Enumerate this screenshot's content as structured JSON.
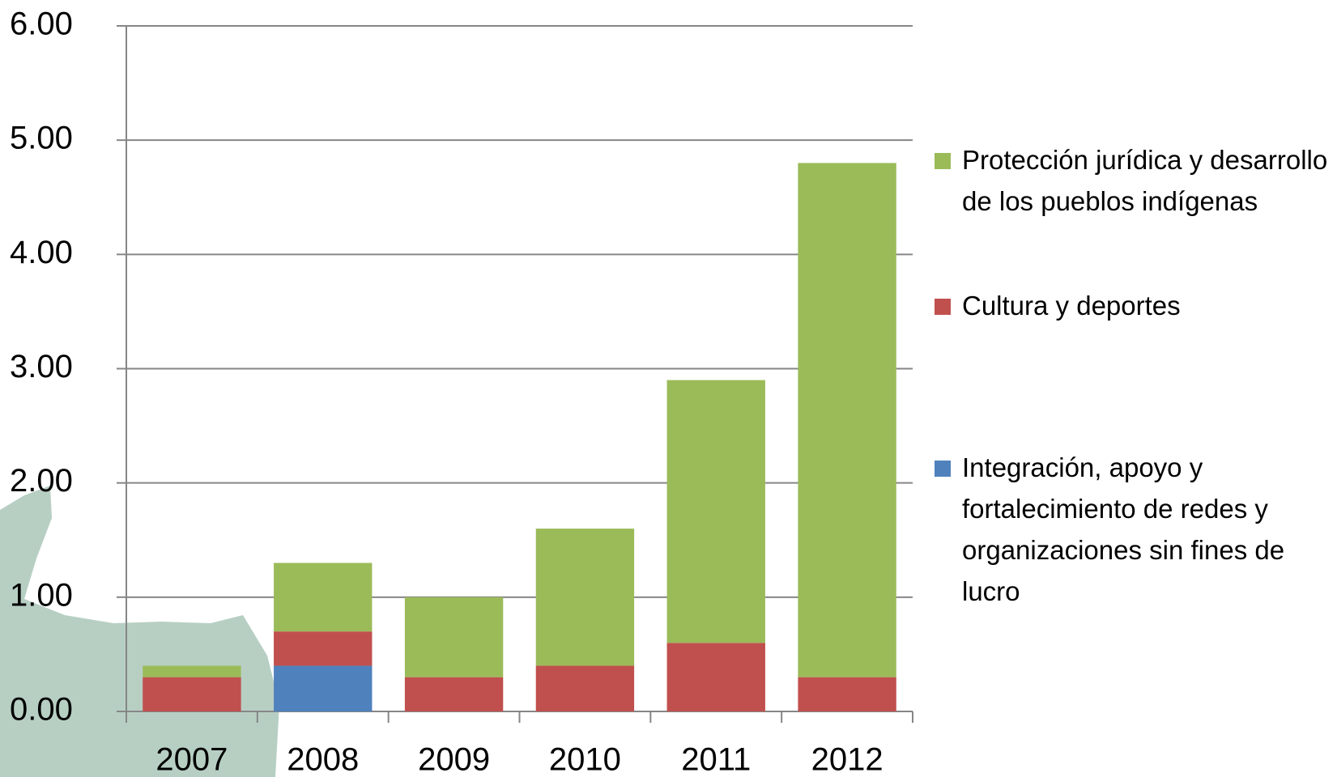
{
  "chart_data": {
    "type": "stacked_bar",
    "categories": [
      "2007",
      "2008",
      "2009",
      "2010",
      "2011",
      "2012"
    ],
    "series": [
      {
        "name": "Protección jurídica y desarrollo de los pueblos indígenas",
        "color": "#9bbb59",
        "values": [
          0.1,
          0.6,
          0.7,
          1.2,
          2.3,
          4.5
        ]
      },
      {
        "name": "Cultura y deportes",
        "color": "#c0504d",
        "values": [
          0.3,
          0.3,
          0.3,
          0.4,
          0.6,
          0.3
        ]
      },
      {
        "name": "Integración, apoyo y fortalecimiento de redes y organizaciones sin fines de lucro",
        "color": "#4f81bd",
        "values": [
          0,
          0.4,
          0,
          0,
          0,
          0
        ]
      }
    ],
    "ylim": [
      0,
      6
    ],
    "yticks": [
      {
        "value": 0,
        "label": "0.00"
      },
      {
        "value": 1,
        "label": "1.00"
      },
      {
        "value": 2,
        "label": "2.00"
      },
      {
        "value": 3,
        "label": "3.00"
      },
      {
        "value": 4,
        "label": "4.00"
      },
      {
        "value": 5,
        "label": "5.00"
      },
      {
        "value": 6,
        "label": "6.00"
      }
    ],
    "grid": true,
    "legend": "right"
  }
}
